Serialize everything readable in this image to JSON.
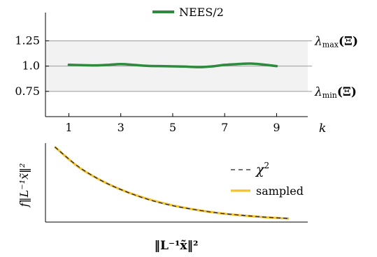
{
  "chart_data": [
    {
      "type": "line",
      "x": [
        1,
        1.5,
        2,
        2.5,
        3,
        3.5,
        4,
        4.5,
        5,
        5.5,
        6,
        6.5,
        7,
        7.5,
        8,
        8.5,
        9
      ],
      "series": [
        {
          "name": "NEES/2",
          "color": "#2e8b3e",
          "values": [
            1.013,
            1.01,
            1.007,
            1.012,
            1.02,
            1.012,
            1.003,
            1.0,
            0.998,
            0.995,
            0.99,
            0.997,
            1.012,
            1.02,
            1.025,
            1.015,
            1.0
          ]
        }
      ],
      "xticks": [
        "1",
        "3",
        "5",
        "7",
        "9"
      ],
      "yticks": [
        "0.75",
        "1.0",
        "1.25"
      ],
      "xlabel": "k",
      "ylabel": "",
      "title": "",
      "xlim": [
        0.1,
        10.2
      ],
      "ylim": [
        0.5,
        1.53
      ],
      "band": [
        0.75,
        1.25
      ],
      "hlines": [
        0.75,
        1.0,
        1.25
      ],
      "annotations": [
        {
          "label": "λmax(Ξ)",
          "main": "λ",
          "sub": "max",
          "arg": "(Ξ)",
          "y": 1.25
        },
        {
          "label": "λmin(Ξ)",
          "main": "λ",
          "sub": "min",
          "arg": "(Ξ)",
          "y": 0.75
        }
      ],
      "legend": "top",
      "band_color": "#f2f2f2",
      "grid_color": "#9a9a9a"
    },
    {
      "type": "line",
      "x": [
        0,
        0.1,
        0.2,
        0.3,
        0.4,
        0.5,
        0.6,
        0.7,
        0.8,
        0.9,
        1.0
      ],
      "series": [
        {
          "name": "χ²",
          "label_main": "χ",
          "label_sup": "2",
          "style": "dashed",
          "color": "#222222",
          "values": [
            1.0,
            0.74,
            0.55,
            0.41,
            0.3,
            0.22,
            0.165,
            0.12,
            0.09,
            0.065,
            0.048
          ]
        },
        {
          "name": "sampled",
          "style": "solid",
          "color": "#f2c230",
          "values": [
            1.0,
            0.735,
            0.55,
            0.41,
            0.305,
            0.225,
            0.165,
            0.12,
            0.088,
            0.064,
            0.047
          ]
        }
      ],
      "xlabel": "‖L⁻¹x̃‖²",
      "ylabel": "f‖L⁻¹x̃‖²",
      "title": "",
      "xlim": [
        -0.04,
        1.08
      ],
      "ylim": [
        0.0,
        1.05
      ],
      "legend": "right"
    }
  ]
}
